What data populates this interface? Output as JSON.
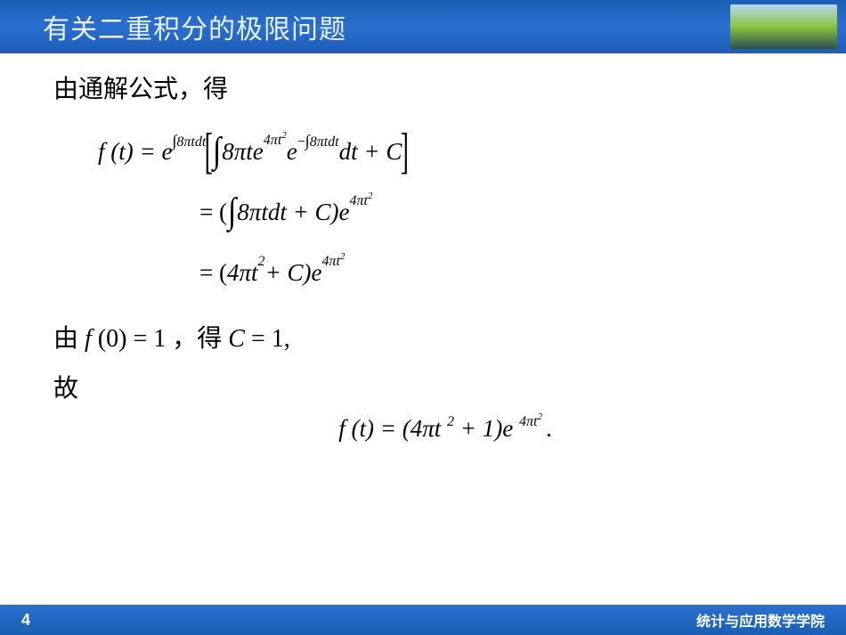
{
  "header": {
    "title": "有关二重积分的极限问题",
    "banner_gradient": [
      "#b8d8f0",
      "#87c540",
      "#2a5050"
    ]
  },
  "content": {
    "intro": "由通解公式，得",
    "eq1": {
      "lhs": "f (t) = e",
      "exp1_int": "∫",
      "exp1": "8πtdt",
      "lbracket": "[",
      "int": "∫",
      "body1": "8πte",
      "exp2": "4πt",
      "exp2sq": "2",
      "body2": "e",
      "exp3_minus": "−",
      "exp3_int": "∫",
      "exp3": "8πtdt",
      "body3": "dt + C",
      "rbracket": "]"
    },
    "eq2": {
      "eq": "= (",
      "int": "∫",
      "body": "8πtdt + C)e",
      "exp": "4πt",
      "expsq": "2"
    },
    "eq3": {
      "eq": "= (4πt",
      "sq1": "2",
      "mid": " + C)e",
      "exp": "4πt",
      "expsq": "2"
    },
    "cond": {
      "prefix": "由",
      "math1_f": "f ",
      "math1_paren": "(0) = 1",
      "comma": "，得 ",
      "math2_c": "C ",
      "math2_eq": "= 1,"
    },
    "gu": "故",
    "final": {
      "lhs": "f (t) = (4πt",
      "sq1": "2",
      "mid": " + 1)e",
      "exp": "4πt",
      "expsq": "2",
      "dot": "."
    }
  },
  "footer": {
    "page": "4",
    "text": "统计与应用数学学院"
  },
  "colors": {
    "header_gradient": [
      "#1a5fb4",
      "#2a6fcf",
      "#1e5db8"
    ],
    "header_text": "#e8f0ff",
    "body_text": "#000000",
    "footer_text": "#ffffff"
  }
}
